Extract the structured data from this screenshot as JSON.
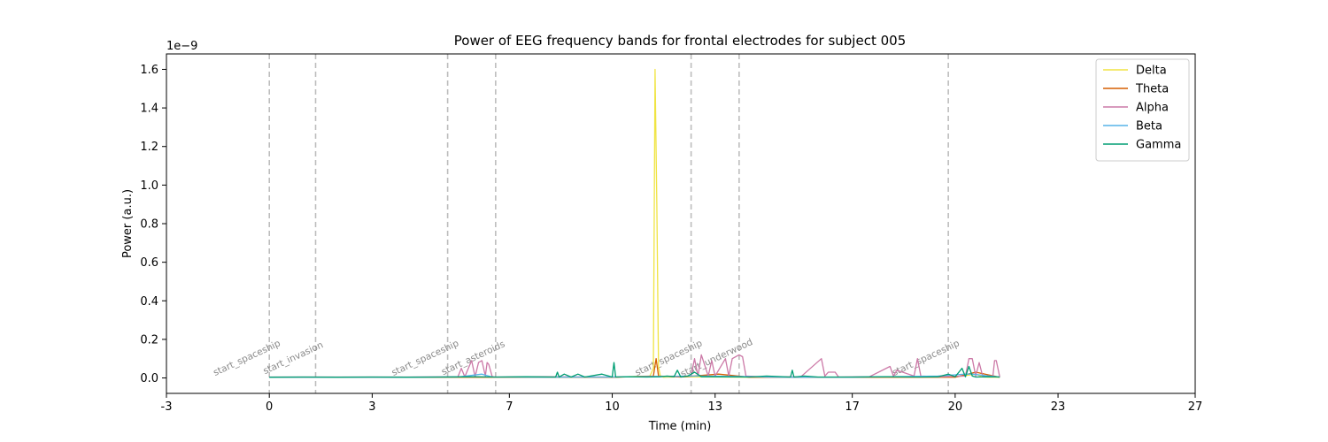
{
  "chart_data": {
    "type": "line",
    "title": "Power of EEG frequency bands for frontal electrodes for subject 005",
    "xlabel": "Time (min)",
    "ylabel": "Power (a.u.)",
    "y_offset_text": "1e−9",
    "y_scale": 1e-09,
    "xlim": [
      -3,
      27
    ],
    "ylim": [
      -0.08,
      1.68
    ],
    "x_ticks": [
      -3,
      0,
      3,
      7,
      10,
      13,
      17,
      20,
      23,
      27
    ],
    "x_tick_labels": [
      "-3",
      "0",
      "3",
      "7",
      "10",
      "13",
      "17",
      "20",
      "23",
      "27"
    ],
    "y_ticks": [
      0.0,
      0.2,
      0.4,
      0.6,
      0.8,
      1.0,
      1.2,
      1.4,
      1.6
    ],
    "y_tick_labels": [
      "0.0",
      "0.2",
      "0.4",
      "0.6",
      "0.8",
      "1.0",
      "1.2",
      "1.4",
      "1.6"
    ],
    "grid": false,
    "legend_position": "top-right",
    "event_markers": [
      {
        "x": 0.0,
        "label": "start_spaceship"
      },
      {
        "x": 1.35,
        "label": "start_invasion"
      },
      {
        "x": 5.2,
        "label": "start_spaceship"
      },
      {
        "x": 6.6,
        "label": "start_asteroids"
      },
      {
        "x": 12.3,
        "label": "start_spaceship"
      },
      {
        "x": 13.7,
        "label": "start_underwood"
      },
      {
        "x": 19.8,
        "label": "start_spaceship"
      }
    ],
    "series": [
      {
        "name": "Delta",
        "color": "#f0e442",
        "x": [
          0,
          2,
          4,
          6,
          8,
          10,
          11.1,
          11.2,
          11.25,
          11.3,
          11.35,
          11.4,
          11.5,
          12,
          14,
          16,
          18,
          20,
          20.6,
          20.8,
          21,
          21.3
        ],
        "y": [
          0.004,
          0.003,
          0.004,
          0.003,
          0.005,
          0.004,
          0.01,
          0.05,
          1.6,
          0.9,
          0.06,
          0.01,
          0.004,
          0.006,
          0.004,
          0.003,
          0.004,
          0.005,
          0.02,
          0.005,
          0.004,
          0.004
        ]
      },
      {
        "name": "Theta",
        "color": "#d55e00",
        "x": [
          0,
          2,
          4,
          6,
          8,
          10,
          11.2,
          11.28,
          11.35,
          12,
          13.1,
          14,
          16,
          18,
          20,
          20.6,
          21.3
        ],
        "y": [
          0.003,
          0.004,
          0.003,
          0.004,
          0.004,
          0.003,
          0.01,
          0.1,
          0.01,
          0.005,
          0.02,
          0.004,
          0.003,
          0.004,
          0.004,
          0.03,
          0.004
        ]
      },
      {
        "name": "Alpha",
        "color": "#cc79a7",
        "x": [
          0,
          2,
          4,
          5.5,
          5.6,
          5.7,
          5.9,
          6.0,
          6.1,
          6.2,
          6.3,
          6.35,
          6.4,
          6.5,
          6.6,
          8,
          10,
          11.3,
          12.3,
          12.4,
          12.5,
          12.6,
          12.8,
          12.9,
          13.0,
          13.3,
          13.4,
          13.5,
          13.7,
          13.8,
          13.9,
          14.5,
          15.5,
          16.1,
          16.2,
          16.3,
          16.5,
          16.6,
          17.5,
          18.1,
          18.2,
          18.3,
          18.8,
          18.9,
          19.0,
          19.5,
          20.3,
          20.4,
          20.5,
          20.6,
          20.7,
          20.8,
          21.1,
          21.15,
          21.2,
          21.3
        ],
        "y": [
          0.005,
          0.005,
          0.005,
          0.006,
          0.05,
          0.006,
          0.09,
          0.006,
          0.08,
          0.09,
          0.01,
          0.08,
          0.07,
          0.006,
          0.005,
          0.006,
          0.005,
          0.008,
          0.01,
          0.1,
          0.01,
          0.12,
          0.01,
          0.09,
          0.01,
          0.1,
          0.01,
          0.1,
          0.12,
          0.11,
          0.01,
          0.005,
          0.006,
          0.1,
          0.01,
          0.03,
          0.03,
          0.005,
          0.006,
          0.06,
          0.01,
          0.04,
          0.01,
          0.1,
          0.01,
          0.006,
          0.01,
          0.1,
          0.1,
          0.01,
          0.08,
          0.01,
          0.01,
          0.09,
          0.09,
          0.006
        ]
      },
      {
        "name": "Beta",
        "color": "#56b4e9",
        "x": [
          0,
          2,
          4,
          5.5,
          6.2,
          6.5,
          8,
          10,
          12.5,
          13.5,
          15,
          17,
          19.5,
          20.3,
          20.5,
          21,
          21.3
        ],
        "y": [
          0.004,
          0.004,
          0.004,
          0.005,
          0.02,
          0.005,
          0.004,
          0.005,
          0.01,
          0.008,
          0.004,
          0.004,
          0.01,
          0.02,
          0.02,
          0.01,
          0.005
        ]
      },
      {
        "name": "Gamma",
        "color": "#009e73",
        "x": [
          0,
          1,
          2,
          3,
          4,
          5,
          6,
          6.6,
          7.5,
          8.35,
          8.4,
          8.45,
          8.6,
          8.8,
          9.0,
          9.2,
          9.7,
          10.0,
          10.05,
          10.1,
          10.5,
          11.0,
          11.4,
          11.6,
          11.8,
          11.9,
          12.0,
          12.2,
          12.4,
          12.6,
          13.0,
          14.0,
          14.5,
          15.2,
          15.25,
          15.3,
          15.6,
          16.0,
          17.0,
          18.0,
          19.0,
          19.5,
          19.8,
          20.0,
          20.2,
          20.3,
          20.4,
          20.5,
          20.6,
          21.0,
          21.3
        ],
        "y": [
          0.004,
          0.005,
          0.004,
          0.005,
          0.004,
          0.005,
          0.006,
          0.005,
          0.006,
          0.005,
          0.03,
          0.005,
          0.02,
          0.005,
          0.02,
          0.005,
          0.02,
          0.005,
          0.08,
          0.005,
          0.006,
          0.005,
          0.006,
          0.01,
          0.006,
          0.04,
          0.005,
          0.01,
          0.03,
          0.006,
          0.006,
          0.005,
          0.01,
          0.005,
          0.04,
          0.005,
          0.01,
          0.005,
          0.005,
          0.006,
          0.005,
          0.006,
          0.02,
          0.006,
          0.05,
          0.006,
          0.06,
          0.01,
          0.005,
          0.006,
          0.005
        ]
      }
    ]
  }
}
